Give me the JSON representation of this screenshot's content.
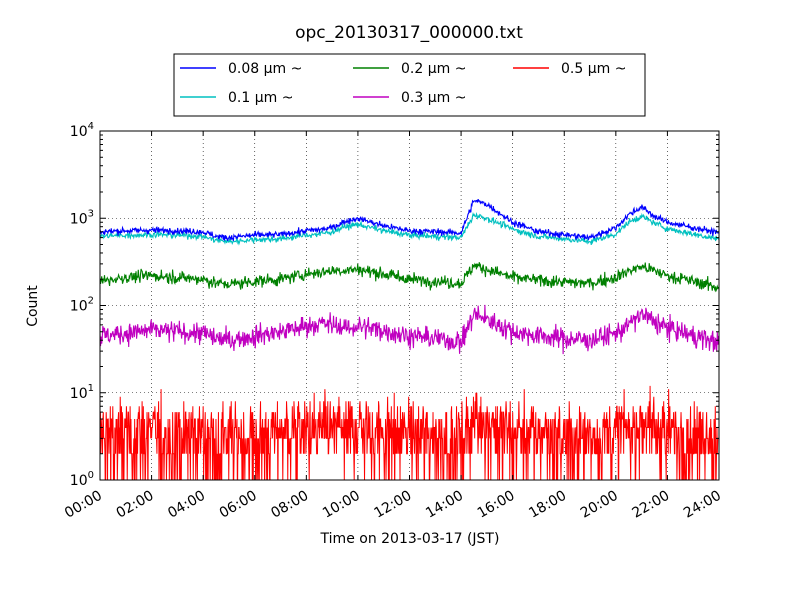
{
  "chart_data": {
    "type": "line",
    "title": "opc_20130317_000000.txt",
    "xlabel": "Time on 2013-03-17 (JST)",
    "ylabel": "Count",
    "yscale": "log",
    "ylim": [
      1,
      10000
    ],
    "xlim": [
      "2013-03-17 00:00",
      "2013-03-18 00:00"
    ],
    "x_ticks": [
      "00:00",
      "02:00",
      "04:00",
      "06:00",
      "08:00",
      "10:00",
      "12:00",
      "14:00",
      "16:00",
      "18:00",
      "20:00",
      "22:00",
      "24:00"
    ],
    "y_ticks": [
      {
        "value": 1,
        "base": "10",
        "exp": "0"
      },
      {
        "value": 10,
        "base": "10",
        "exp": "1"
      },
      {
        "value": 100,
        "base": "10",
        "exp": "2"
      },
      {
        "value": 1000,
        "base": "10",
        "exp": "3"
      },
      {
        "value": 10000,
        "base": "10",
        "exp": "4"
      }
    ],
    "grid": true,
    "legend_position": "top-center, above plot",
    "x": [
      "00:00",
      "01:00",
      "02:00",
      "03:00",
      "04:00",
      "04:30",
      "05:00",
      "06:00",
      "07:00",
      "08:00",
      "08:30",
      "09:00",
      "09:30",
      "10:00",
      "11:00",
      "12:00",
      "13:00",
      "14:00",
      "14:30",
      "15:00",
      "16:00",
      "17:00",
      "18:00",
      "19:00",
      "20:00",
      "20:30",
      "21:00",
      "21:30",
      "22:00",
      "23:00",
      "24:00"
    ],
    "series": [
      {
        "name": "0.08 μm ~",
        "color": "#0000ff",
        "noise": 0.04,
        "values": [
          700,
          720,
          730,
          720,
          700,
          620,
          600,
          640,
          650,
          720,
          740,
          780,
          920,
          1000,
          820,
          720,
          700,
          680,
          1600,
          1450,
          900,
          700,
          650,
          600,
          780,
          1100,
          1350,
          1050,
          900,
          780,
          680
        ]
      },
      {
        "name": "0.1 μm ~",
        "color": "#00c0c0",
        "noise": 0.04,
        "values": [
          620,
          640,
          650,
          640,
          620,
          560,
          540,
          570,
          580,
          640,
          660,
          700,
          800,
          850,
          720,
          640,
          620,
          600,
          1100,
          1000,
          750,
          620,
          580,
          540,
          660,
          900,
          1050,
          880,
          760,
          660,
          580
        ]
      },
      {
        "name": "0.2 μm ~",
        "color": "#008000",
        "noise": 0.08,
        "values": [
          190,
          210,
          220,
          210,
          200,
          180,
          175,
          190,
          200,
          230,
          240,
          250,
          255,
          260,
          230,
          200,
          190,
          180,
          290,
          260,
          210,
          195,
          185,
          180,
          210,
          250,
          280,
          250,
          220,
          190,
          160
        ]
      },
      {
        "name": "0.3 μm ~",
        "color": "#c000c0",
        "noise": 0.14,
        "values": [
          45,
          48,
          52,
          50,
          48,
          42,
          40,
          45,
          50,
          58,
          62,
          60,
          55,
          58,
          52,
          45,
          42,
          38,
          80,
          70,
          50,
          45,
          42,
          40,
          48,
          60,
          80,
          65,
          55,
          45,
          38
        ]
      },
      {
        "name": "0.5 μm ~",
        "color": "#ff0000",
        "noise": 1.0,
        "discrete": true,
        "values": [
          3.5,
          3.5,
          3.6,
          3.5,
          3.4,
          3.2,
          3.0,
          3.3,
          3.5,
          4.0,
          4.0,
          4.0,
          4.0,
          4.2,
          3.8,
          3.5,
          3.4,
          3.2,
          5.5,
          4.5,
          3.8,
          3.5,
          3.3,
          3.2,
          3.6,
          4.2,
          5.0,
          4.2,
          3.8,
          3.5,
          3.2
        ]
      }
    ]
  }
}
